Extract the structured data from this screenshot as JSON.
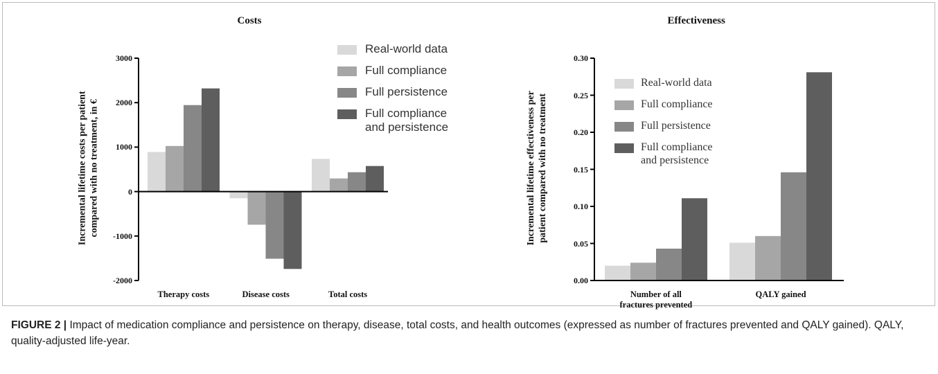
{
  "chart_data": [
    {
      "type": "bar",
      "title": "Costs",
      "y_label": "Incremental lifetime costs per patient\ncompared with no treatment, in €",
      "categories": [
        "Therapy costs",
        "Disease costs",
        "Total costs"
      ],
      "series": [
        {
          "name": "Real-world data",
          "color": "#d9d9d9",
          "values": [
            890,
            -150,
            735
          ]
        },
        {
          "name": "Full compliance",
          "color": "#a6a6a6",
          "values": [
            1025,
            -745,
            295
          ]
        },
        {
          "name": "Full persistence",
          "color": "#878787",
          "values": [
            1945,
            -1510,
            435
          ]
        },
        {
          "name": "Full compliance\nand persistence",
          "color": "#5e5e5e",
          "values": [
            2320,
            -1740,
            575
          ]
        }
      ],
      "ylim": [
        -2000,
        3000
      ],
      "yticks": [
        -2000,
        -1000,
        0,
        1000,
        2000,
        3000
      ],
      "legend": "upper right"
    },
    {
      "type": "bar",
      "title": "Effectiveness",
      "y_label": "Incremental lifetime effectiveness per\npatient compared with no treatment",
      "categories": [
        "Number of all\nfractures prevented",
        "QALY gained"
      ],
      "series": [
        {
          "name": "Real-world data",
          "color": "#d9d9d9",
          "values": [
            0.02,
            0.051
          ]
        },
        {
          "name": "Full compliance",
          "color": "#a6a6a6",
          "values": [
            0.024,
            0.06
          ]
        },
        {
          "name": "Full persistence",
          "color": "#878787",
          "values": [
            0.043,
            0.146
          ]
        },
        {
          "name": "Full compliance\nand persistence",
          "color": "#5e5e5e",
          "values": [
            0.111,
            0.281
          ]
        }
      ],
      "ylim": [
        0,
        0.3
      ],
      "yticks": [
        {
          "value": 0,
          "label": "0.00"
        },
        {
          "value": 0.05,
          "label": "0.05"
        },
        {
          "value": 0.1,
          "label": "0.10"
        },
        {
          "value": 0.15,
          "label": "0.15"
        },
        {
          "value": 0.2,
          "label": "0.20"
        },
        {
          "value": 0.25,
          "label": "0.25"
        },
        {
          "value": 0.3,
          "label": "0.30"
        }
      ],
      "legend": "upper left"
    }
  ],
  "caption": {
    "label": "FIGURE 2 |",
    "text": "Impact of medication compliance and persistence on therapy, disease, total costs, and health outcomes (expressed as number of fractures prevented and QALY gained). QALY, quality-adjusted life-year."
  }
}
